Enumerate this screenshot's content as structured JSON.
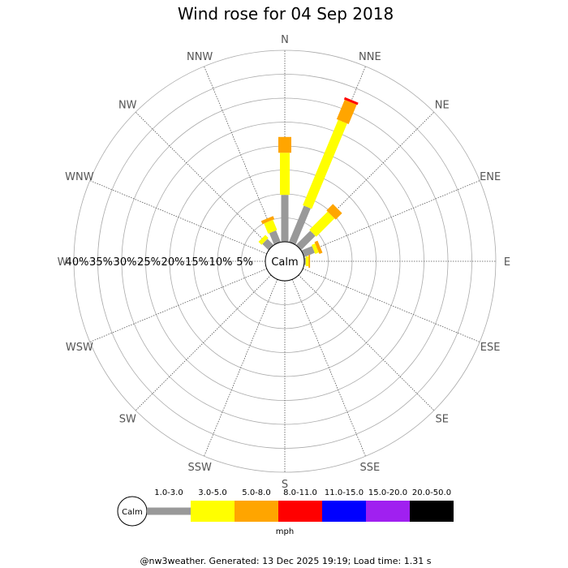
{
  "chart_data": {
    "type": "wind-rose",
    "title": "Wind rose for 04 Sep 2018",
    "directions": [
      "N",
      "NNE",
      "NE",
      "ENE",
      "E",
      "ESE",
      "SE",
      "SSE",
      "S",
      "SSW",
      "SW",
      "WSW",
      "W",
      "WNW",
      "NW",
      "NNW"
    ],
    "ring_labels": [
      "5%",
      "10%",
      "15%",
      "20%",
      "25%",
      "30%",
      "35%",
      "40%"
    ],
    "rmax_percent": 40,
    "calm_label": "Calm",
    "unit": "mph",
    "speed_bins": [
      {
        "label": "1.0-3.0",
        "color": "#999999"
      },
      {
        "label": "3.0-5.0",
        "color": "#ffff00"
      },
      {
        "label": "5.0-8.0",
        "color": "#ffa500"
      },
      {
        "label": "8.0-11.0",
        "color": "#ff0000"
      },
      {
        "label": "11.0-15.0",
        "color": "#0000ff"
      },
      {
        "label": "15.0-20.0",
        "color": "#a020f0"
      },
      {
        "label": "20.0-50.0",
        "color": "#000000"
      }
    ],
    "series": [
      {
        "direction": "N",
        "cumulative": [
          9.8,
          18.6,
          21.9
        ]
      },
      {
        "direction": "NNE",
        "cumulative": [
          8.2,
          27.5,
          31.9,
          32.4
        ]
      },
      {
        "direction": "NE",
        "cumulative": [
          4.2,
          9.6,
          11.5
        ]
      },
      {
        "direction": "ENE",
        "cumulative": [
          2.4,
          3.2,
          3.9
        ]
      },
      {
        "direction": "E",
        "cumulative": [
          0.3,
          0.9,
          1.2
        ]
      },
      {
        "direction": "NW",
        "cumulative": [
          1.8,
          2.7
        ]
      },
      {
        "direction": "NNW",
        "cumulative": [
          2.6,
          4.9,
          5.6
        ]
      }
    ]
  },
  "footer": "@nw3weather. Generated: 13 Dec 2025 19:19; Load time: 1.31 s"
}
